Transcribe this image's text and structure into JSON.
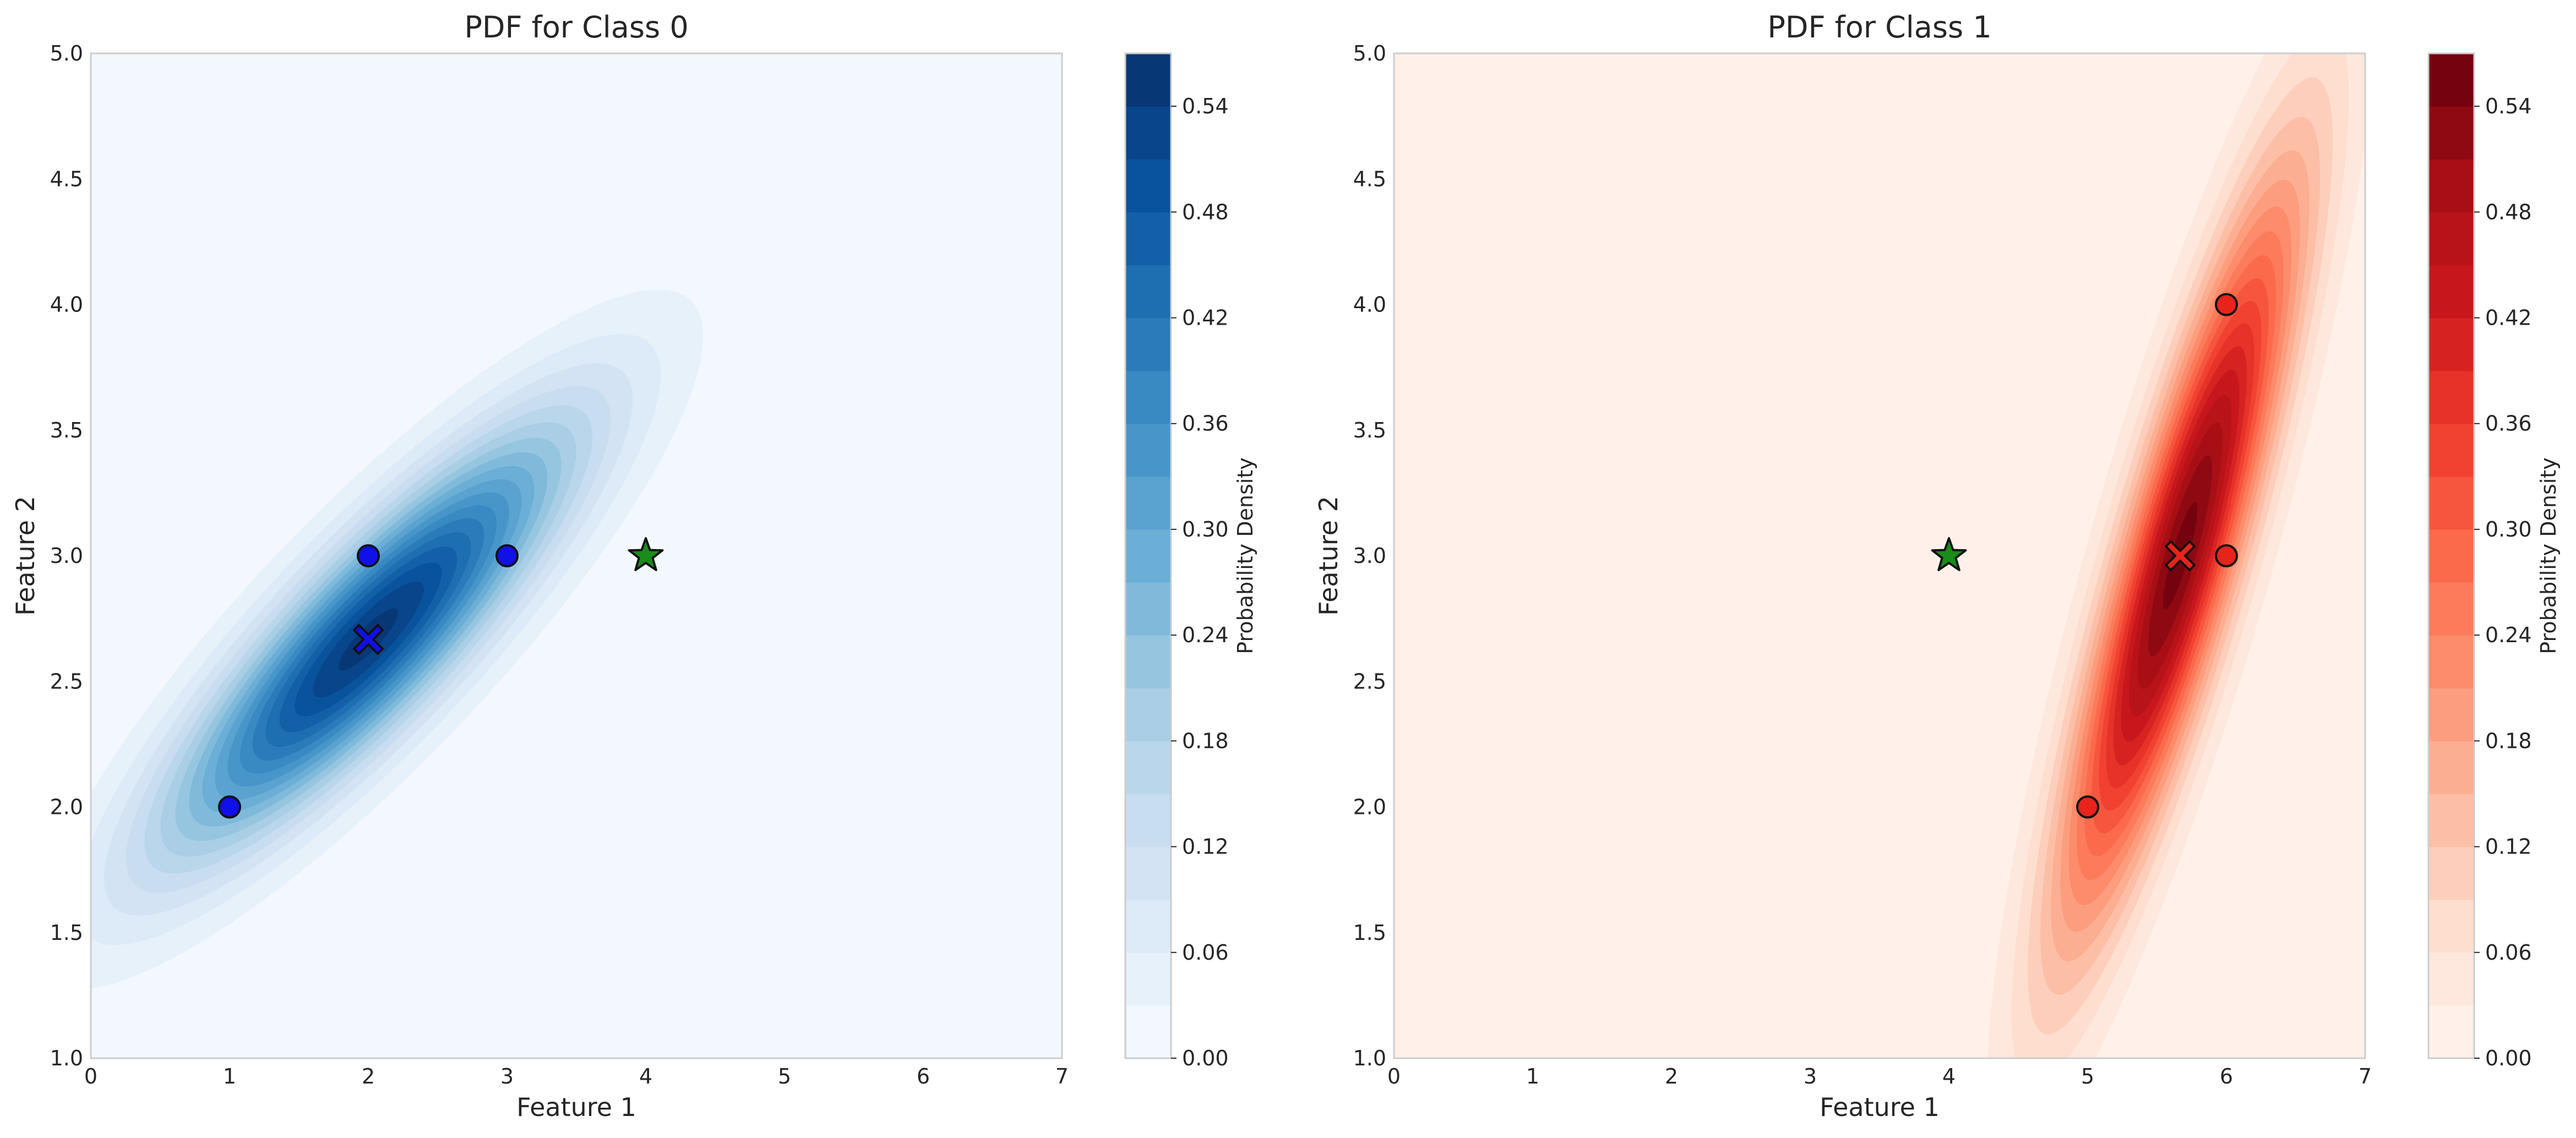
{
  "chart_data": [
    {
      "type": "contour",
      "title": "PDF for Class 0",
      "xlabel": "Feature 1",
      "ylabel": "Feature 2",
      "xlim": [
        0,
        7
      ],
      "ylim": [
        1,
        5
      ],
      "xticks": [
        "0",
        "1",
        "2",
        "3",
        "4",
        "5",
        "6",
        "7"
      ],
      "yticks": [
        "1.0",
        "1.5",
        "2.0",
        "2.5",
        "3.0",
        "3.5",
        "4.0",
        "4.5",
        "5.0"
      ],
      "grid": false,
      "colormap": "Blues",
      "colormap_stops": [
        "#f7fbff",
        "#deebf7",
        "#c6dbef",
        "#9ecae1",
        "#6baed6",
        "#4292c6",
        "#2171b5",
        "#08519c",
        "#08306b"
      ],
      "distribution": {
        "mean": [
          2.0,
          2.667
        ],
        "covariance": [
          [
            1.0,
            0.5
          ],
          [
            0.5,
            0.333
          ]
        ]
      },
      "points": [
        {
          "x": 1,
          "y": 2
        },
        {
          "x": 2,
          "y": 3
        },
        {
          "x": 3,
          "y": 3
        }
      ],
      "point_color": "#1010e8",
      "mean_marker": {
        "x": 2.0,
        "y": 2.667,
        "color": "#1010e8"
      },
      "test_point": {
        "x": 4,
        "y": 3,
        "color": "#1a8c1a"
      },
      "colorbar": {
        "label": "Probability Density",
        "range": [
          0,
          0.57
        ],
        "ticks": [
          "0.00",
          "0.06",
          "0.12",
          "0.18",
          "0.24",
          "0.30",
          "0.36",
          "0.42",
          "0.48",
          "0.54"
        ],
        "levels": 19
      }
    },
    {
      "type": "contour",
      "title": "PDF for Class 1",
      "xlabel": "Feature 1",
      "ylabel": "Feature 2",
      "xlim": [
        0,
        7
      ],
      "ylim": [
        1,
        5
      ],
      "xticks": [
        "0",
        "1",
        "2",
        "3",
        "4",
        "5",
        "6",
        "7"
      ],
      "yticks": [
        "1.0",
        "1.5",
        "2.0",
        "2.5",
        "3.0",
        "3.5",
        "4.0",
        "4.5",
        "5.0"
      ],
      "grid": false,
      "colormap": "Reds",
      "colormap_stops": [
        "#fff5f0",
        "#fee0d2",
        "#fcbba1",
        "#fc9272",
        "#fb6a4a",
        "#ef3b2c",
        "#cb181d",
        "#a50f15",
        "#67000d"
      ],
      "distribution": {
        "mean": [
          5.667,
          3.0
        ],
        "covariance": [
          [
            0.333,
            0.5
          ],
          [
            0.5,
            1.0
          ]
        ]
      },
      "points": [
        {
          "x": 5,
          "y": 2
        },
        {
          "x": 6,
          "y": 3
        },
        {
          "x": 6,
          "y": 4
        }
      ],
      "point_color": "#e8231c",
      "mean_marker": {
        "x": 5.667,
        "y": 3.0,
        "color": "#e8231c"
      },
      "test_point": {
        "x": 4,
        "y": 3,
        "color": "#1a8c1a"
      },
      "colorbar": {
        "label": "Probability Density",
        "range": [
          0,
          0.57
        ],
        "ticks": [
          "0.00",
          "0.06",
          "0.12",
          "0.18",
          "0.24",
          "0.30",
          "0.36",
          "0.42",
          "0.48",
          "0.54"
        ],
        "levels": 19
      }
    }
  ]
}
